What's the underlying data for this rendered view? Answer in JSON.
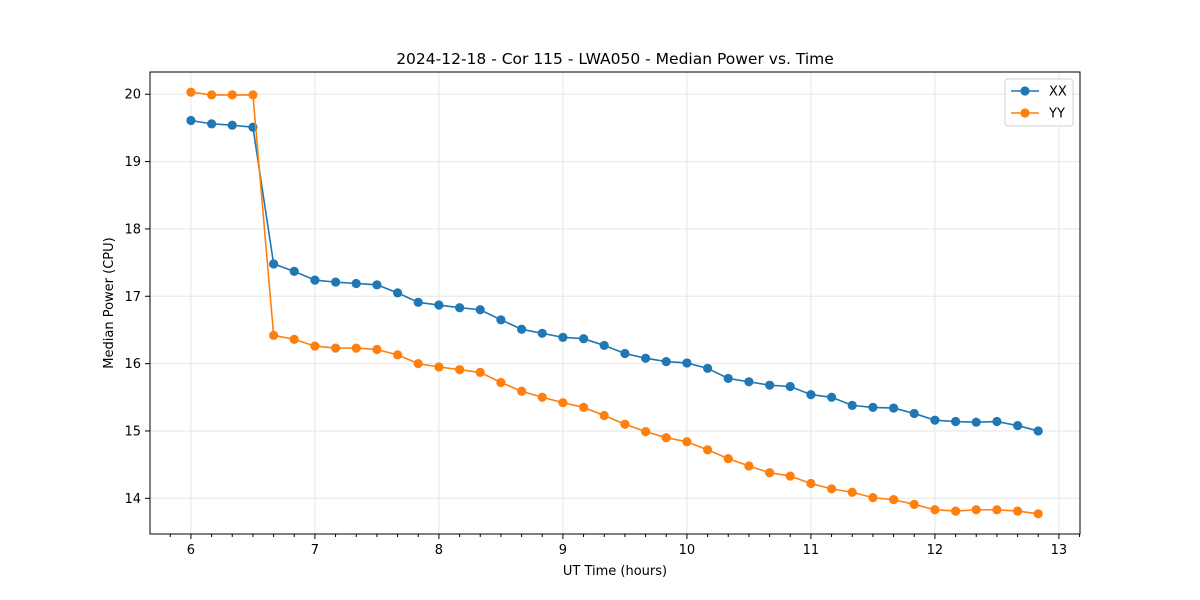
{
  "chart_data": {
    "type": "line",
    "title": "2024-12-18 - Cor 115 - LWA050 - Median Power vs. Time",
    "xlabel": "UT Time (hours)",
    "ylabel": "Median Power (CPU)",
    "xlim": [
      5.67,
      13.17
    ],
    "ylim": [
      13.47,
      20.33
    ],
    "xticks": [
      6,
      7,
      8,
      9,
      10,
      11,
      12,
      13
    ],
    "yticks": [
      14,
      15,
      16,
      17,
      18,
      19,
      20
    ],
    "grid": true,
    "legend_position": "top-right",
    "x": [
      6.0,
      6.167,
      6.333,
      6.5,
      6.667,
      6.833,
      7.0,
      7.167,
      7.333,
      7.5,
      7.667,
      7.833,
      8.0,
      8.167,
      8.333,
      8.5,
      8.667,
      8.833,
      9.0,
      9.167,
      9.333,
      9.5,
      9.667,
      9.833,
      10.0,
      10.167,
      10.333,
      10.5,
      10.667,
      10.833,
      11.0,
      11.167,
      11.333,
      11.5,
      11.667,
      11.833,
      12.0,
      12.167,
      12.333,
      12.5,
      12.667,
      12.833
    ],
    "series": [
      {
        "name": "XX",
        "color": "#1f77b4",
        "values": [
          19.61,
          19.56,
          19.54,
          19.51,
          17.48,
          17.37,
          17.24,
          17.21,
          17.19,
          17.17,
          17.05,
          16.91,
          16.87,
          16.83,
          16.8,
          16.65,
          16.51,
          16.45,
          16.39,
          16.37,
          16.27,
          16.15,
          16.08,
          16.03,
          16.01,
          15.93,
          15.78,
          15.73,
          15.68,
          15.66,
          15.54,
          15.5,
          15.38,
          15.35,
          15.34,
          15.26,
          15.16,
          15.14,
          15.13,
          15.14,
          15.08,
          15.0
        ]
      },
      {
        "name": "YY",
        "color": "#ff7f0e",
        "values": [
          20.03,
          19.99,
          19.99,
          19.99,
          16.42,
          16.36,
          16.26,
          16.23,
          16.23,
          16.21,
          16.13,
          16.0,
          15.95,
          15.91,
          15.87,
          15.72,
          15.59,
          15.5,
          15.42,
          15.35,
          15.23,
          15.1,
          14.99,
          14.9,
          14.84,
          14.72,
          14.59,
          14.48,
          14.38,
          14.33,
          14.22,
          14.14,
          14.09,
          14.01,
          13.98,
          13.91,
          13.83,
          13.81,
          13.83,
          13.83,
          13.81,
          13.77
        ]
      }
    ]
  }
}
